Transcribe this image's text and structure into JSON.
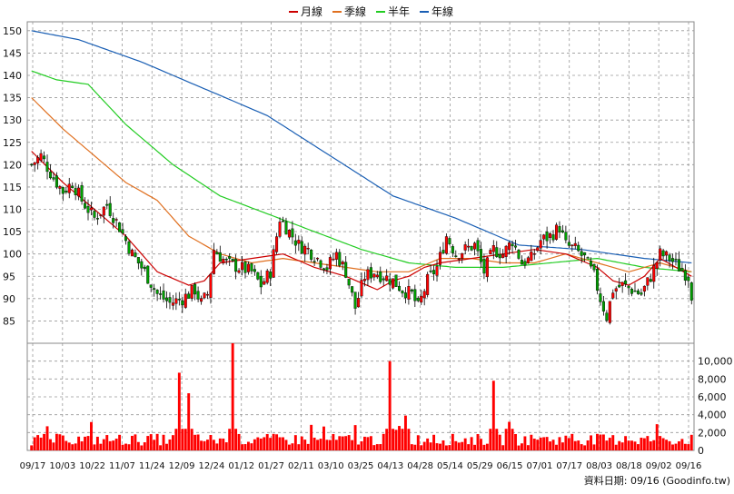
{
  "chart_data": {
    "type": "candlestick",
    "legend": {
      "placement": "top-center",
      "items": [
        {
          "label": "月線",
          "color": "#cc0000"
        },
        {
          "label": "季線",
          "color": "#e07020"
        },
        {
          "label": "半年",
          "color": "#22cc22"
        },
        {
          "label": "年線",
          "color": "#1a5fb4"
        }
      ]
    },
    "price_axis": {
      "ylim": [
        80,
        152
      ],
      "ticks": [
        85,
        90,
        95,
        100,
        105,
        110,
        115,
        120,
        125,
        130,
        135,
        140,
        145,
        150
      ],
      "side": "left"
    },
    "volume_axis": {
      "ylim": [
        0,
        12000
      ],
      "ticks": [
        0,
        2000,
        4000,
        6000,
        8000,
        10000
      ],
      "tick_labels": [
        "0",
        "2,000",
        "4,000",
        "6,000",
        "8,000",
        "10,000"
      ],
      "side": "right"
    },
    "x_tick_labels": [
      "09/17",
      "10/03",
      "10/22",
      "11/07",
      "11/24",
      "12/09",
      "12/24",
      "01/12",
      "01/27",
      "02/11",
      "03/10",
      "03/25",
      "04/13",
      "04/28",
      "05/14",
      "05/29",
      "06/15",
      "07/01",
      "07/17",
      "08/03",
      "08/18",
      "09/02",
      "09/16"
    ],
    "grid": true,
    "up_color": "#ff0000",
    "down_color": "#00a000",
    "volume_color": "#ff0000",
    "close_anchors": [
      [
        0,
        120
      ],
      [
        3,
        122
      ],
      [
        7,
        117
      ],
      [
        10,
        114
      ],
      [
        13,
        116
      ],
      [
        16,
        112
      ],
      [
        20,
        108
      ],
      [
        24,
        111
      ],
      [
        28,
        106
      ],
      [
        32,
        100
      ],
      [
        36,
        96
      ],
      [
        40,
        91
      ],
      [
        44,
        89
      ],
      [
        48,
        90
      ],
      [
        52,
        92
      ],
      [
        54,
        89
      ],
      [
        56,
        91
      ],
      [
        58,
        101
      ],
      [
        62,
        98
      ],
      [
        66,
        97
      ],
      [
        70,
        96
      ],
      [
        73,
        93
      ],
      [
        76,
        96
      ],
      [
        79,
        108
      ],
      [
        82,
        105
      ],
      [
        85,
        102
      ],
      [
        88,
        101
      ],
      [
        91,
        99
      ],
      [
        94,
        97
      ],
      [
        97,
        100
      ],
      [
        100,
        96
      ],
      [
        103,
        88
      ],
      [
        106,
        95
      ],
      [
        109,
        96
      ],
      [
        112,
        95
      ],
      [
        115,
        94
      ],
      [
        118,
        92
      ],
      [
        121,
        91
      ],
      [
        123,
        88
      ],
      [
        126,
        94
      ],
      [
        129,
        97
      ],
      [
        132,
        104
      ],
      [
        135,
        100
      ],
      [
        138,
        101
      ],
      [
        141,
        102
      ],
      [
        144,
        96
      ],
      [
        147,
        101
      ],
      [
        150,
        100
      ],
      [
        153,
        103
      ],
      [
        156,
        98
      ],
      [
        159,
        99
      ],
      [
        162,
        103
      ],
      [
        165,
        104
      ],
      [
        168,
        106
      ],
      [
        170,
        102
      ],
      [
        173,
        101
      ],
      [
        176,
        99
      ],
      [
        179,
        95
      ],
      [
        181,
        90
      ],
      [
        183,
        86
      ],
      [
        185,
        92
      ],
      [
        188,
        93
      ],
      [
        191,
        92
      ],
      [
        194,
        91
      ],
      [
        197,
        95
      ],
      [
        200,
        100
      ],
      [
        203,
        99
      ],
      [
        206,
        97
      ],
      [
        209,
        95
      ],
      [
        210,
        91
      ]
    ],
    "candle_count": 211,
    "ma_lines": {
      "year": [
        [
          0,
          150
        ],
        [
          15,
          148
        ],
        [
          35,
          143
        ],
        [
          55,
          137
        ],
        [
          75,
          131
        ],
        [
          95,
          122
        ],
        [
          115,
          113
        ],
        [
          135,
          108
        ],
        [
          155,
          102
        ],
        [
          175,
          101
        ],
        [
          195,
          99
        ],
        [
          210,
          98
        ]
      ],
      "half": [
        [
          0,
          141
        ],
        [
          8,
          139
        ],
        [
          18,
          138
        ],
        [
          30,
          129
        ],
        [
          45,
          120
        ],
        [
          60,
          113
        ],
        [
          75,
          109
        ],
        [
          90,
          105
        ],
        [
          105,
          101
        ],
        [
          120,
          98
        ],
        [
          135,
          97
        ],
        [
          150,
          97
        ],
        [
          165,
          98
        ],
        [
          180,
          99
        ],
        [
          195,
          97
        ],
        [
          210,
          96
        ]
      ],
      "quarter": [
        [
          0,
          135
        ],
        [
          10,
          128
        ],
        [
          20,
          122
        ],
        [
          30,
          116
        ],
        [
          40,
          112
        ],
        [
          50,
          104
        ],
        [
          60,
          100
        ],
        [
          70,
          98
        ],
        [
          80,
          99
        ],
        [
          90,
          98
        ],
        [
          100,
          97
        ],
        [
          110,
          96
        ],
        [
          120,
          96
        ],
        [
          130,
          99
        ],
        [
          140,
          99
        ],
        [
          150,
          98
        ],
        [
          160,
          98
        ],
        [
          170,
          100
        ],
        [
          180,
          98
        ],
        [
          190,
          96
        ],
        [
          200,
          98
        ],
        [
          210,
          96
        ]
      ],
      "month": [
        [
          0,
          123
        ],
        [
          10,
          116
        ],
        [
          20,
          110
        ],
        [
          30,
          104
        ],
        [
          40,
          96
        ],
        [
          50,
          93
        ],
        [
          55,
          94
        ],
        [
          60,
          98
        ],
        [
          70,
          99
        ],
        [
          80,
          100
        ],
        [
          90,
          97
        ],
        [
          100,
          95
        ],
        [
          110,
          92
        ],
        [
          115,
          94
        ],
        [
          120,
          95
        ],
        [
          125,
          97
        ],
        [
          130,
          98
        ],
        [
          140,
          99
        ],
        [
          150,
          100
        ],
        [
          160,
          101
        ],
        [
          170,
          100
        ],
        [
          180,
          97
        ],
        [
          185,
          94
        ],
        [
          190,
          93
        ],
        [
          195,
          95
        ],
        [
          200,
          99
        ],
        [
          205,
          97
        ],
        [
          210,
          95
        ]
      ]
    },
    "volume_spikes": [
      [
        47,
        8700
      ],
      [
        50,
        6400
      ],
      [
        64,
        12000
      ],
      [
        114,
        10000
      ],
      [
        119,
        3900
      ],
      [
        147,
        7800
      ],
      [
        152,
        3200
      ]
    ],
    "volume_baseline": 1100,
    "footer": "資料日期: 09/16 (Goodinfo.tw)"
  }
}
